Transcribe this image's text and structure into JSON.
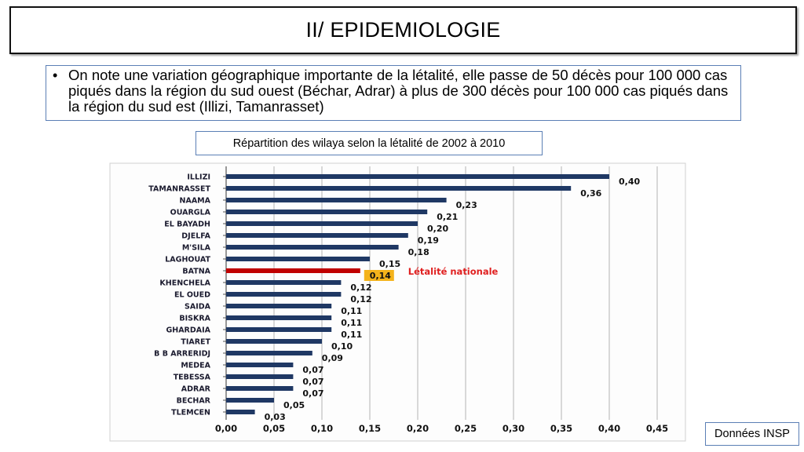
{
  "slide": {
    "title": "II/ EPIDEMIOLOGIE",
    "bullet": "On note une variation géographique importante de la létalité, elle passe de 50 décès pour 100 000 cas piqués dans la région du sud ouest (Béchar, Adrar) à plus de 300 décès pour 100 000 cas piqués dans la région du sud est (Illizi, Tamanrasset)",
    "caption": "Répartition des wilaya selon la létalité de 2002 à 2010",
    "source": "Données INSP"
  },
  "colors": {
    "bar": "#1f3864",
    "highlight_bar": "#c00000",
    "highlight_label_bg": "#f4b31b",
    "annotation": "#e02020"
  },
  "chart_data": {
    "type": "bar",
    "orientation": "horizontal",
    "categories": [
      "ILLIZI",
      "TAMANRASSET",
      "NAAMA",
      "OUARGLA",
      "EL BAYADH",
      "DJELFA",
      "M'SILA",
      "LAGHOUAT",
      "BATNA",
      "KHENCHELA",
      "EL OUED",
      "SAIDA",
      "BISKRA",
      "GHARDAIA",
      "TIARET",
      "B B ARRERIDJ",
      "MEDEA",
      "TEBESSA",
      "ADRAR",
      "BECHAR",
      "TLEMCEN"
    ],
    "values": [
      0.4,
      0.36,
      0.23,
      0.21,
      0.2,
      0.19,
      0.18,
      0.15,
      0.14,
      0.12,
      0.12,
      0.11,
      0.11,
      0.11,
      0.1,
      0.09,
      0.07,
      0.07,
      0.07,
      0.05,
      0.03
    ],
    "value_labels": [
      "0,40",
      "0,36",
      "0,23",
      "0,21",
      "0,20",
      "0,19",
      "0,18",
      "0,15",
      "0,14",
      "0,12",
      "0,12",
      "0,11",
      "0,11",
      "0,11",
      "0,10",
      "0,09",
      "0,07",
      "0,07",
      "0,07",
      "0,05",
      "0,03"
    ],
    "highlight_category": "BATNA",
    "annotation": "Létalité nationale",
    "xlim": [
      0,
      0.45
    ],
    "xticks": [
      "0,00",
      "0,05",
      "0,10",
      "0,15",
      "0,20",
      "0,25",
      "0,30",
      "0,35",
      "0,40",
      "0,45"
    ],
    "grid": "vertical"
  }
}
